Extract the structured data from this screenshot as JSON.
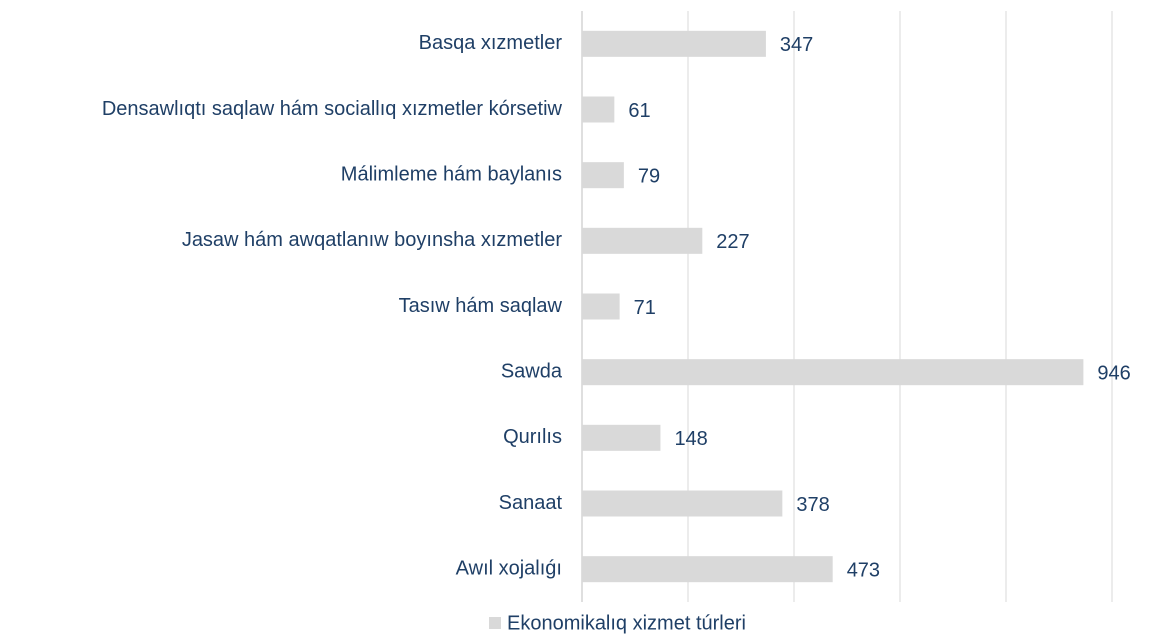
{
  "chart_data": {
    "type": "bar",
    "orientation": "horizontal",
    "categories": [
      "Basqa xızmetler",
      "Densawlıqtı saqlaw hám sociallıq xızmetler kórsetiw",
      "Málimleme hám baylanıs",
      "Jasaw hám awqatlanıw boyınsha xızmetler",
      "Tasıw hám saqlaw",
      "Sawda",
      "Qurılıs",
      "Sanaat",
      "Awıl xojalıǵı"
    ],
    "series": [
      {
        "name": "Ekonomikalıq xizmet túrleri",
        "color": "#d9d9d9",
        "values": [
          347,
          61,
          79,
          227,
          71,
          946,
          148,
          378,
          473
        ]
      }
    ],
    "xlim": [
      0,
      1000
    ],
    "xticks": [
      0,
      200,
      400,
      600,
      800,
      1000
    ],
    "grid": true,
    "legend": "bottom"
  }
}
